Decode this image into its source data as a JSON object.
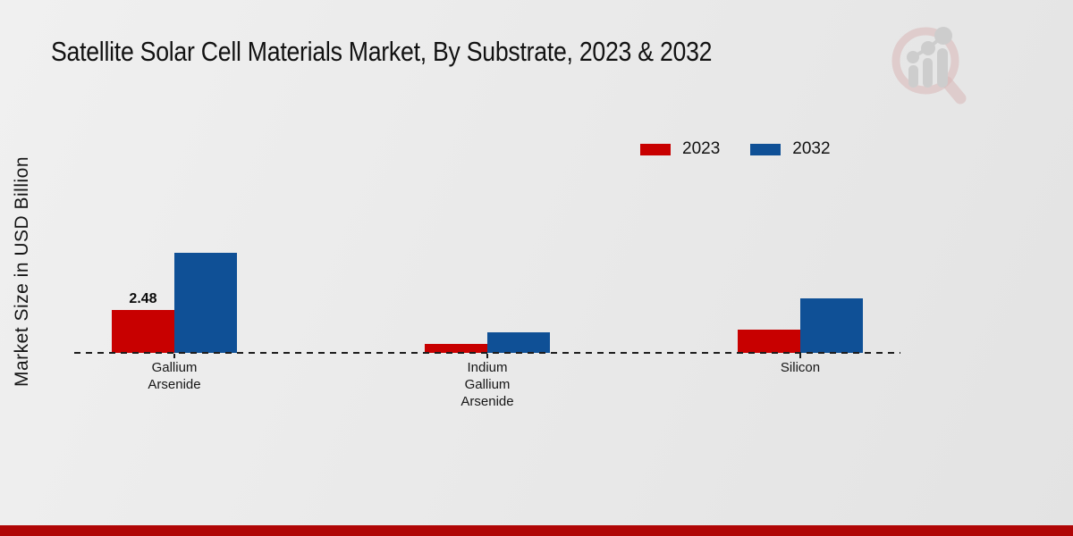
{
  "chart_data": {
    "type": "bar",
    "title": "Satellite Solar Cell Materials Market, By Substrate, 2023 & 2032",
    "ylabel": "Market Size in USD Billion",
    "xlabel": "",
    "categories": [
      "Gallium Arsenide",
      "Indium Gallium Arsenide",
      "Silicon"
    ],
    "series": [
      {
        "name": "2023",
        "color": "#c80000",
        "values": [
          2.48,
          0.52,
          1.35
        ]
      },
      {
        "name": "2032",
        "color": "#0f5096",
        "values": [
          5.8,
          1.19,
          3.15
        ]
      }
    ],
    "annotations": [
      {
        "category": "Gallium Arsenide",
        "series": "2023",
        "text": "2.48"
      }
    ],
    "ylim": [
      0,
      6.5
    ],
    "grid": false,
    "baseline_style": "dashed",
    "legend_position": "top-right"
  },
  "colors": {
    "bar_2023": "#c80000",
    "bar_2032": "#0f5096",
    "footer_band": "#b00606",
    "background": "#eaeaea"
  },
  "logo": {
    "name": "magnifier-trend-logo"
  }
}
